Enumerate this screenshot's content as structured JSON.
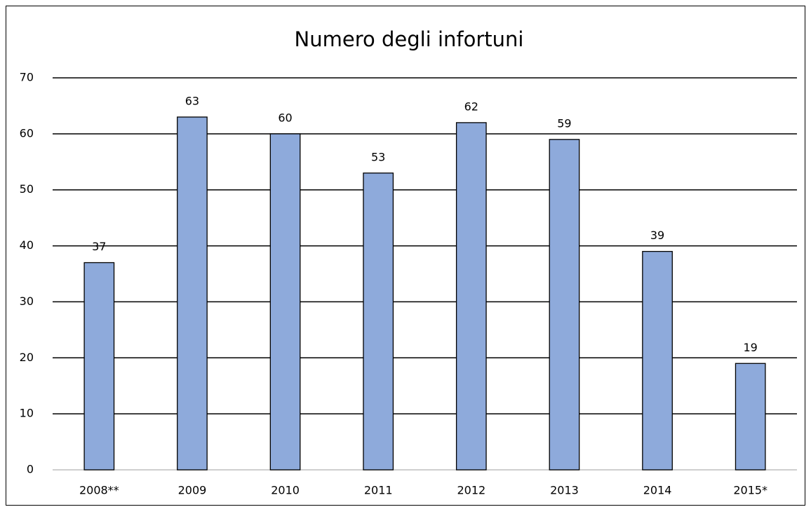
{
  "chart_data": {
    "type": "bar",
    "title": "Numero degli infortuni",
    "categories": [
      "2008**",
      "2009",
      "2010",
      "2011",
      "2012",
      "2013",
      "2014",
      "2015*"
    ],
    "values": [
      37,
      63,
      60,
      53,
      62,
      59,
      39,
      19
    ],
    "color": "#8eaadb",
    "ylim": [
      0,
      70
    ],
    "yticks": [
      0,
      10,
      20,
      30,
      40,
      50,
      60,
      70
    ],
    "grid": true
  }
}
